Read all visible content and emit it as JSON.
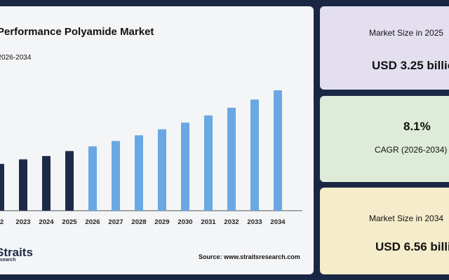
{
  "chart_panel": {
    "title": "-Performance Polyamide Market",
    "subtitle": "t 2026-2034",
    "source": "Source: www.straitsresearch.com",
    "logo": "Straits",
    "logo_sub": "esearch"
  },
  "colors": {
    "historical_bar": "#1e2a4a",
    "forecast_bar": "#6aa8e4",
    "background": "#1a2744"
  },
  "chart_data": {
    "type": "bar",
    "title": "-Performance Polyamide Market",
    "subtitle": "t 2026-2034",
    "categories": [
      "22",
      "2023",
      "2024",
      "2025",
      "2026",
      "2027",
      "2028",
      "2029",
      "2030",
      "2031",
      "2032",
      "2033",
      "2034"
    ],
    "values": [
      2.55,
      2.8,
      2.98,
      3.25,
      3.51,
      3.8,
      4.11,
      4.44,
      4.8,
      5.19,
      5.61,
      6.06,
      6.56
    ],
    "series_type": [
      "historical",
      "historical",
      "historical",
      "historical",
      "forecast",
      "forecast",
      "forecast",
      "forecast",
      "forecast",
      "forecast",
      "forecast",
      "forecast",
      "forecast"
    ],
    "xlabel": "",
    "ylabel": "",
    "grid": false
  },
  "stats": {
    "card1": {
      "label": "Market Size in 2025",
      "value": "USD 3.25 billio"
    },
    "card2": {
      "value": "8.1%",
      "label": "CAGR (2026-2034)"
    },
    "card3": {
      "label": "Market Size in 2034",
      "value": "USD 6.56 billio"
    }
  }
}
